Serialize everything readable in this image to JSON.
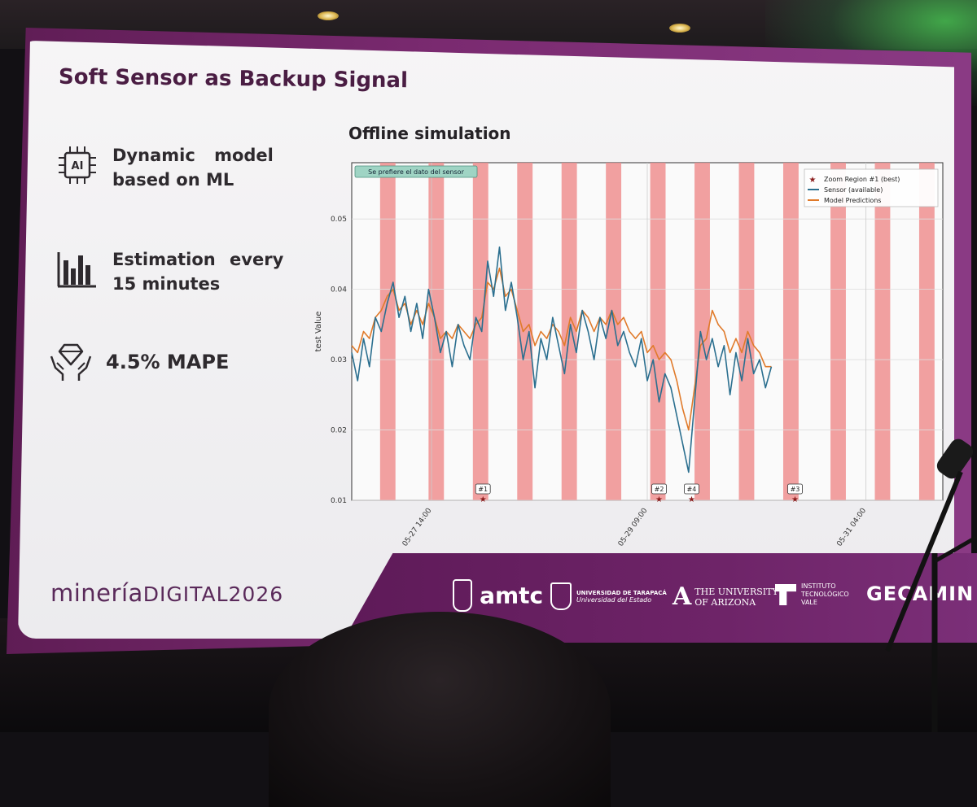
{
  "slide": {
    "title": "Soft Sensor as Backup Signal",
    "features": [
      {
        "icon": "ai-chip-icon",
        "line1": "Dynamic model",
        "line2": "based on ML",
        "icon_text": "AI"
      },
      {
        "icon": "bar-chart-icon",
        "line1": "Estimation every",
        "line2": "15 minutes"
      },
      {
        "icon": "diamond-hands-icon",
        "line1": "4.5% MAPE"
      }
    ],
    "chart_title": "Offline simulation",
    "brand": {
      "part1": "minería",
      "part2": "DIGITAL2026"
    },
    "logos": {
      "amtc": "amtc",
      "tarapaca_line1": "UNIVERSIDAD DE TARAPACÁ",
      "tarapaca_line2": "Universidad del Estado",
      "arizona_line1": "THE UNIVERSITY",
      "arizona_line2": "OF ARIZONA",
      "itv_line1": "INSTITUTO",
      "itv_line2": "TECNOLÓGICO",
      "itv_line3": "VALE",
      "gecamin": "GECAMIN"
    },
    "colors": {
      "accent": "#5e1a58",
      "title": "#4a1d43",
      "sensor": "#2b6f8f",
      "prediction": "#e07a2a",
      "zone": "#ef8f8f"
    }
  },
  "chart_data": {
    "type": "line",
    "title": "Offline simulation",
    "xlabel": "",
    "ylabel": "test Value",
    "ylim": [
      0.01,
      0.058
    ],
    "yticks": [
      "0.01",
      "0.02",
      "0.03",
      "0.04",
      "0.05"
    ],
    "xticks": [
      {
        "label": "05-27 14:00",
        "t": 0.135
      },
      {
        "label": "05-29 09:00",
        "t": 0.5
      },
      {
        "label": "05-31 04:00",
        "t": 0.87
      }
    ],
    "annotation": "Se prefiere el dato del sensor",
    "legend": {
      "placement": "top-right",
      "entries": [
        "Zoom Region #1 (best)",
        "Sensor (available)",
        "Model Predictions"
      ]
    },
    "markers": [
      {
        "label": "#1",
        "t": 0.222
      },
      {
        "label": "#2",
        "t": 0.52
      },
      {
        "label": "#4",
        "t": 0.575
      },
      {
        "label": "#3",
        "t": 0.75
      }
    ],
    "bands": [
      0.048,
      0.13,
      0.205,
      0.28,
      0.355,
      0.43,
      0.505,
      0.58,
      0.655,
      0.73,
      0.81,
      0.885,
      0.96
    ],
    "band_width": 0.026,
    "series": [
      {
        "name": "Sensor (available)",
        "x": [
          0.0,
          0.01,
          0.02,
          0.03,
          0.04,
          0.05,
          0.06,
          0.07,
          0.08,
          0.09,
          0.1,
          0.11,
          0.12,
          0.13,
          0.14,
          0.15,
          0.16,
          0.17,
          0.18,
          0.19,
          0.2,
          0.21,
          0.22,
          0.23,
          0.24,
          0.25,
          0.26,
          0.27,
          0.28,
          0.29,
          0.3,
          0.31,
          0.32,
          0.33,
          0.34,
          0.35,
          0.36,
          0.37,
          0.38,
          0.39,
          0.4,
          0.41,
          0.42,
          0.43,
          0.44,
          0.45,
          0.46,
          0.47,
          0.48,
          0.49,
          0.5,
          0.51,
          0.52,
          0.53,
          0.54,
          0.55,
          0.56,
          0.57,
          0.58,
          0.59,
          0.6,
          0.61,
          0.62,
          0.63,
          0.64,
          0.65,
          0.66,
          0.67,
          0.68,
          0.69,
          0.7,
          0.71
        ],
        "values": [
          0.031,
          0.027,
          0.033,
          0.029,
          0.036,
          0.034,
          0.038,
          0.041,
          0.036,
          0.039,
          0.034,
          0.038,
          0.033,
          0.04,
          0.036,
          0.031,
          0.034,
          0.029,
          0.035,
          0.032,
          0.03,
          0.036,
          0.034,
          0.044,
          0.039,
          0.046,
          0.037,
          0.041,
          0.036,
          0.03,
          0.034,
          0.026,
          0.033,
          0.03,
          0.036,
          0.032,
          0.028,
          0.035,
          0.031,
          0.037,
          0.034,
          0.03,
          0.036,
          0.033,
          0.037,
          0.032,
          0.034,
          0.031,
          0.029,
          0.033,
          0.027,
          0.03,
          0.024,
          0.028,
          0.026,
          0.022,
          0.018,
          0.014,
          0.024,
          0.034,
          0.03,
          0.033,
          0.029,
          0.032,
          0.025,
          0.031,
          0.027,
          0.033,
          0.028,
          0.03,
          0.026,
          0.029
        ]
      },
      {
        "name": "Model Predictions",
        "x": [
          0.0,
          0.01,
          0.02,
          0.03,
          0.04,
          0.05,
          0.06,
          0.07,
          0.08,
          0.09,
          0.1,
          0.11,
          0.12,
          0.13,
          0.14,
          0.15,
          0.16,
          0.17,
          0.18,
          0.19,
          0.2,
          0.21,
          0.22,
          0.23,
          0.24,
          0.25,
          0.26,
          0.27,
          0.28,
          0.29,
          0.3,
          0.31,
          0.32,
          0.33,
          0.34,
          0.35,
          0.36,
          0.37,
          0.38,
          0.39,
          0.4,
          0.41,
          0.42,
          0.43,
          0.44,
          0.45,
          0.46,
          0.47,
          0.48,
          0.49,
          0.5,
          0.51,
          0.52,
          0.53,
          0.54,
          0.55,
          0.56,
          0.57,
          0.58,
          0.59,
          0.6,
          0.61,
          0.62,
          0.63,
          0.64,
          0.65,
          0.66,
          0.67,
          0.68,
          0.69,
          0.7,
          0.71
        ],
        "values": [
          0.032,
          0.031,
          0.034,
          0.033,
          0.036,
          0.037,
          0.039,
          0.04,
          0.037,
          0.038,
          0.035,
          0.037,
          0.035,
          0.038,
          0.036,
          0.033,
          0.034,
          0.033,
          0.035,
          0.034,
          0.033,
          0.035,
          0.036,
          0.041,
          0.04,
          0.043,
          0.039,
          0.04,
          0.037,
          0.034,
          0.035,
          0.032,
          0.034,
          0.033,
          0.035,
          0.034,
          0.032,
          0.036,
          0.034,
          0.037,
          0.036,
          0.034,
          0.036,
          0.035,
          0.037,
          0.035,
          0.036,
          0.034,
          0.033,
          0.034,
          0.031,
          0.032,
          0.03,
          0.031,
          0.03,
          0.027,
          0.023,
          0.02,
          0.026,
          0.032,
          0.033,
          0.037,
          0.035,
          0.034,
          0.031,
          0.033,
          0.031,
          0.034,
          0.032,
          0.031,
          0.029,
          0.029
        ]
      }
    ]
  }
}
